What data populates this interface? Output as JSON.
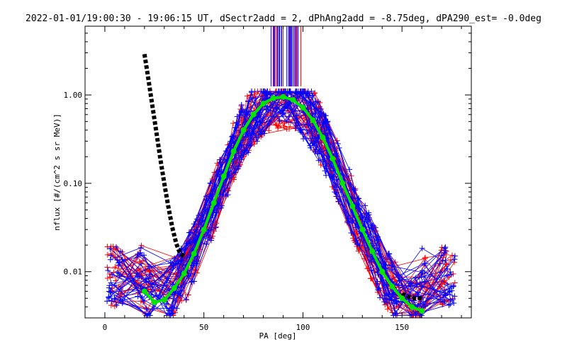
{
  "chart_data": {
    "type": "line",
    "title": "2022-01-01/19:00:30 - 19:06:15 UT, dSectr2add = 2, dPhAng2add = -8.75deg, dPA290_est=  -0.0deg",
    "xlabel": "PA [deg]",
    "ylabel": "nflux [#/(cm^2 s sr MeV)]",
    "xlim": [
      -10,
      185
    ],
    "ylim": [
      0.003,
      6.0
    ],
    "yscale": "log",
    "x_ticks": [
      0,
      50,
      100,
      150
    ],
    "x_tick_labels": [
      "0",
      "50",
      "100",
      "150"
    ],
    "y_ticks": [
      0.01,
      0.1,
      1.0
    ],
    "y_tick_labels": [
      "0.01",
      "0.10",
      "1.00"
    ],
    "grid": false,
    "colors": {
      "red_traces": "#ff0000",
      "blue_traces": "#0000ff",
      "green_fit": "#00e600",
      "black_curve": "#000000"
    },
    "series": [
      {
        "role": "green-fit-curve",
        "x": [
          20,
          25,
          30,
          35,
          40,
          45,
          50,
          55,
          60,
          65,
          70,
          75,
          80,
          85,
          90,
          95,
          100,
          105,
          110,
          115,
          120,
          125,
          130,
          135,
          140,
          145,
          150,
          155,
          160
        ],
        "y": [
          0.006,
          0.0045,
          0.0048,
          0.0065,
          0.0095,
          0.016,
          0.03,
          0.06,
          0.12,
          0.23,
          0.4,
          0.6,
          0.8,
          0.92,
          0.95,
          0.88,
          0.72,
          0.52,
          0.33,
          0.19,
          0.1,
          0.055,
          0.03,
          0.017,
          0.01,
          0.0068,
          0.005,
          0.004,
          0.0036
        ]
      },
      {
        "role": "black-curve-left",
        "x": [
          20,
          22,
          24,
          26,
          28,
          30,
          32,
          34,
          36,
          38,
          40
        ],
        "y": [
          2.9,
          1.5,
          0.75,
          0.38,
          0.19,
          0.1,
          0.055,
          0.032,
          0.021,
          0.016,
          0.015
        ]
      },
      {
        "role": "black-curve-right",
        "x": [
          150,
          155,
          160
        ],
        "y": [
          0.0056,
          0.005,
          0.005
        ]
      }
    ]
  }
}
